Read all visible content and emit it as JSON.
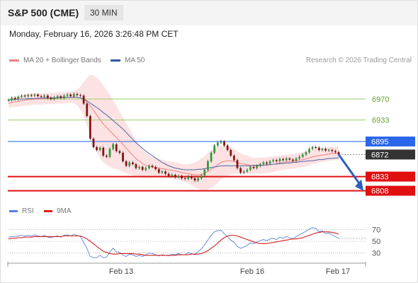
{
  "header": {
    "title": "S&P 500 (CME)",
    "timeframe": "30 MIN"
  },
  "datetime": "Monday, February 16, 2026 3:26:48 PM CET",
  "legend": {
    "ma20": {
      "label": "MA 20 + Bollinger Bands",
      "color": "#f08080"
    },
    "ma50": {
      "label": "MA 50",
      "color": "#2f5a9e"
    },
    "rsi": {
      "label": "RSI",
      "color": "#5b7fd6"
    },
    "nine_ma": {
      "label": "9MA",
      "color": "#e02020"
    }
  },
  "credit": "Research © 2026 Trading Central",
  "chart_data": [
    {
      "type": "candlestick",
      "ylim": [
        6790,
        7010
      ],
      "x_ticks": [
        "Feb 13",
        "Feb 16",
        "Feb 17"
      ],
      "levels": [
        {
          "value": 6970,
          "label": "6970",
          "style": "resistance-green"
        },
        {
          "value": 6933,
          "label": "6933",
          "style": "resistance-green"
        },
        {
          "value": 6895,
          "label": "6895",
          "style": "pivot-blue"
        },
        {
          "value": 6872,
          "label": "6872",
          "style": "last-price"
        },
        {
          "value": 6833,
          "label": "6833",
          "style": "support-red"
        },
        {
          "value": 6808,
          "label": "6808",
          "style": "support-red"
        }
      ],
      "close": [
        6968,
        6972,
        6970,
        6974,
        6976,
        6975,
        6977,
        6976,
        6978,
        6975,
        6974,
        6976,
        6972,
        6970,
        6973,
        6975,
        6972,
        6976,
        6978,
        6975,
        6979,
        6977,
        6976,
        6962,
        6940,
        6900,
        6885,
        6880,
        6884,
        6870,
        6868,
        6882,
        6890,
        6878,
        6875,
        6860,
        6852,
        6858,
        6855,
        6848,
        6850,
        6845,
        6848,
        6852,
        6850,
        6846,
        6840,
        6842,
        6838,
        6834,
        6836,
        6832,
        6834,
        6830,
        6829,
        6833,
        6830,
        6826,
        6830,
        6835,
        6845,
        6860,
        6875,
        6888,
        6893,
        6895,
        6888,
        6880,
        6870,
        6862,
        6848,
        6840,
        6842,
        6845,
        6850,
        6848,
        6852,
        6855,
        6858,
        6856,
        6860,
        6862,
        6860,
        6864,
        6862,
        6865,
        6863,
        6861,
        6865,
        6868,
        6872,
        6876,
        6882,
        6885,
        6884,
        6880,
        6882,
        6879,
        6880,
        6878,
        6876,
        6872
      ],
      "ma20": [
        6962,
        6964,
        6965,
        6966,
        6967,
        6968,
        6969,
        6969,
        6970,
        6970,
        6970,
        6971,
        6971,
        6971,
        6971,
        6972,
        6972,
        6972,
        6973,
        6973,
        6974,
        6973,
        6972,
        6970,
        6965,
        6958,
        6950,
        6942,
        6934,
        6926,
        6920,
        6914,
        6908,
        6902,
        6896,
        6890,
        6883,
        6877,
        6871,
        6865,
        6860,
        6856,
        6853,
        6851,
        6850,
        6849,
        6848,
        6847,
        6846,
        6845,
        6844,
        6843,
        6842,
        6840,
        6839,
        6838,
        6837,
        6836,
        6836,
        6837,
        6839,
        6842,
        6846,
        6850,
        6854,
        6858,
        6860,
        6861,
        6861,
        6860,
        6858,
        6856,
        6855,
        6854,
        6853,
        6852,
        6852,
        6852,
        6853,
        6853,
        6854,
        6855,
        6856,
        6857,
        6858,
        6859,
        6859,
        6860,
        6861,
        6862,
        6863,
        6864,
        6866,
        6868,
        6869,
        6870,
        6871,
        6872,
        6873,
        6874,
        6874,
        6874
      ],
      "ma50": [
        6968,
        6969,
        6969,
        6970,
        6970,
        6970,
        6971,
        6971,
        6971,
        6971,
        6972,
        6972,
        6972,
        6972,
        6972,
        6972,
        6973,
        6973,
        6973,
        6973,
        6973,
        6973,
        6972,
        6970,
        6967,
        6963,
        6959,
        6955,
        6951,
        6946,
        6942,
        6937,
        6932,
        6927,
        6922,
        6917,
        6911,
        6905,
        6899,
        6893,
        6888,
        6883,
        6878,
        6874,
        6870,
        6866,
        6862,
        6858,
        6855,
        6852,
        6850,
        6848,
        6847,
        6846,
        6845,
        6845,
        6845,
        6845,
        6846,
        6846,
        6847,
        6848,
        6849,
        6850,
        6851,
        6852,
        6852,
        6852,
        6852,
        6852,
        6852,
        6852,
        6852,
        6852,
        6852,
        6853,
        6853,
        6853,
        6853,
        6854,
        6854,
        6855,
        6855,
        6856,
        6856,
        6857,
        6857,
        6858,
        6858,
        6859,
        6860,
        6860,
        6861,
        6861,
        6862,
        6863,
        6863,
        6864,
        6865,
        6865,
        6866,
        6866
      ],
      "bb_width": [
        8,
        8,
        9,
        9,
        9,
        10,
        10,
        10,
        10,
        10,
        10,
        10,
        10,
        10,
        10,
        10,
        10,
        10,
        10,
        10,
        11,
        14,
        20,
        30,
        42,
        55,
        62,
        66,
        68,
        68,
        66,
        64,
        60,
        56,
        52,
        48,
        44,
        40,
        36,
        32,
        28,
        25,
        22,
        20,
        18,
        17,
        16,
        16,
        15,
        15,
        15,
        15,
        15,
        15,
        16,
        17,
        19,
        22,
        25,
        28,
        30,
        32,
        33,
        33,
        32,
        30,
        28,
        26,
        24,
        22,
        20,
        18,
        17,
        16,
        15,
        14,
        14,
        14,
        14,
        14,
        14,
        14,
        13,
        13,
        13,
        13,
        13,
        13,
        13,
        13,
        13,
        13,
        13,
        13,
        13,
        12,
        12,
        12,
        12,
        12,
        12,
        12
      ],
      "projection": {
        "from": 6872,
        "to": 6808
      }
    },
    {
      "type": "line",
      "ylim": [
        15,
        85
      ],
      "y_ticks": [
        70,
        50,
        30
      ],
      "series": [
        {
          "name": "RSI",
          "values": [
            57,
            58,
            58,
            59,
            60,
            59,
            60,
            59,
            61,
            59,
            58,
            60,
            57,
            56,
            58,
            59,
            57,
            60,
            61,
            59,
            62,
            60,
            58,
            48,
            38,
            24,
            22,
            22,
            26,
            22,
            23,
            32,
            38,
            32,
            31,
            26,
            24,
            28,
            27,
            24,
            26,
            24,
            27,
            30,
            29,
            27,
            25,
            27,
            26,
            25,
            28,
            27,
            29,
            27,
            27,
            31,
            29,
            27,
            32,
            37,
            44,
            52,
            60,
            66,
            68,
            69,
            63,
            58,
            52,
            48,
            41,
            38,
            40,
            43,
            47,
            46,
            49,
            51,
            53,
            51,
            54,
            55,
            53,
            57,
            55,
            58,
            56,
            54,
            58,
            61,
            64,
            67,
            71,
            73,
            72,
            66,
            68,
            63,
            64,
            61,
            58,
            55
          ]
        },
        {
          "name": "9MA",
          "values": [
            54,
            55,
            55,
            56,
            56,
            57,
            57,
            57,
            58,
            58,
            58,
            58,
            58,
            58,
            58,
            58,
            58,
            59,
            59,
            59,
            59,
            59,
            59,
            57,
            54,
            50,
            46,
            41,
            37,
            33,
            31,
            29,
            28,
            28,
            29,
            29,
            29,
            29,
            29,
            28,
            28,
            27,
            26,
            26,
            26,
            26,
            26,
            26,
            26,
            26,
            26,
            26,
            27,
            27,
            27,
            27,
            28,
            28,
            28,
            29,
            31,
            34,
            38,
            42,
            47,
            52,
            56,
            59,
            60,
            60,
            59,
            57,
            55,
            53,
            51,
            49,
            47,
            46,
            46,
            46,
            47,
            48,
            49,
            50,
            51,
            52,
            53,
            54,
            54,
            55,
            56,
            58,
            60,
            62,
            64,
            65,
            66,
            66,
            66,
            65,
            64,
            62
          ]
        }
      ]
    }
  ]
}
